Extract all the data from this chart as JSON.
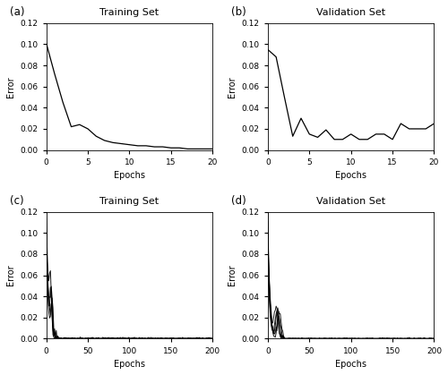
{
  "title_a": "Training Set",
  "title_b": "Validation Set",
  "title_c": "Training Set",
  "title_d": "Validation Set",
  "label_a": "(a)",
  "label_b": "(b)",
  "label_c": "(c)",
  "label_d": "(d)",
  "xlabel": "Epochs",
  "ylabel": "Error",
  "xlim_ab": [
    0,
    20
  ],
  "xlim_cd": [
    0,
    200
  ],
  "ylim_ab": [
    0,
    0.12
  ],
  "ylim_cd": [
    0,
    0.12
  ],
  "yticks": [
    0.0,
    0.02,
    0.04,
    0.06,
    0.08,
    0.1,
    0.12
  ],
  "xticks_ab": [
    0,
    5,
    10,
    15,
    20
  ],
  "xticks_cd": [
    0,
    50,
    100,
    150,
    200
  ],
  "line_color": "#000000",
  "background_color": "#ffffff"
}
